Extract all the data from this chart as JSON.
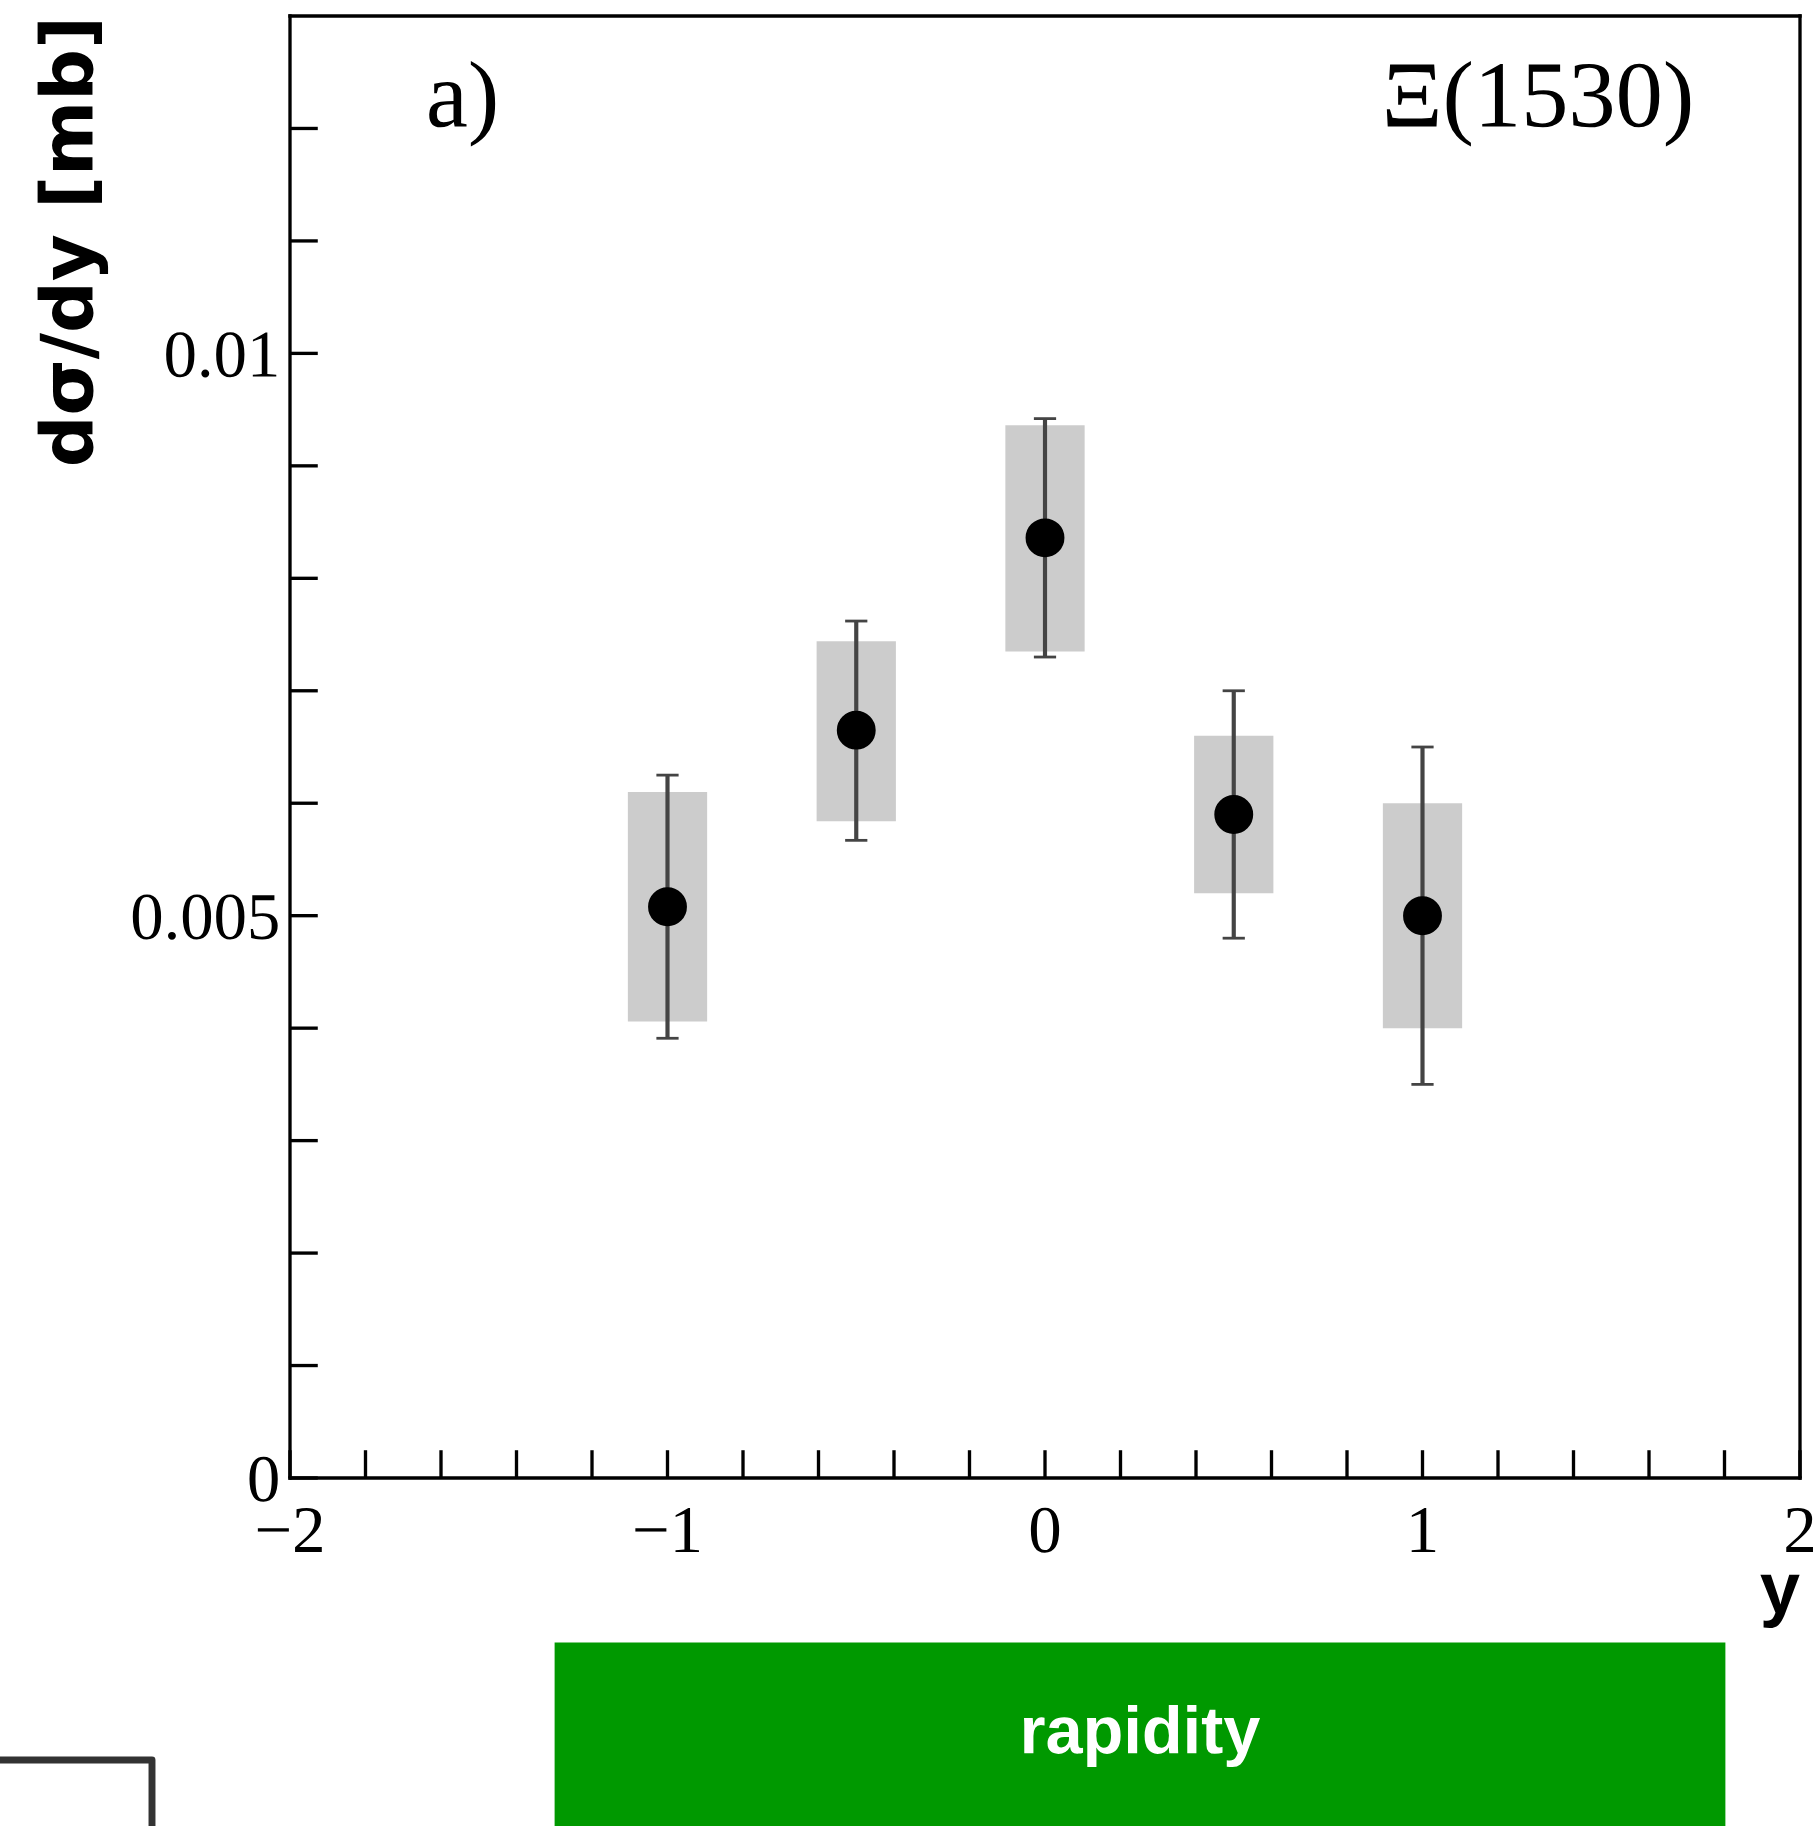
{
  "chart_data": {
    "type": "scatter",
    "xlabel": "y",
    "ylabel": "dσ/dy [mb]",
    "annotations": [
      "a)",
      "Ξ(1530)",
      "rapidity"
    ],
    "xlim": [
      -2,
      2
    ],
    "xticks": [
      {
        "value": -2,
        "label": "−2"
      },
      {
        "value": -1.8,
        "label": null
      },
      {
        "value": -1.6,
        "label": null
      },
      {
        "value": -1.4,
        "label": null
      },
      {
        "value": -1.2,
        "label": null
      },
      {
        "value": -1,
        "label": "−1"
      },
      {
        "value": -0.8,
        "label": null
      },
      {
        "value": -0.6,
        "label": null
      },
      {
        "value": -0.4,
        "label": null
      },
      {
        "value": -0.2,
        "label": null
      },
      0,
      {
        "value": 0.2,
        "label": null
      },
      {
        "value": 0.4,
        "label": null
      },
      {
        "value": 0.6,
        "label": null
      },
      {
        "value": 0.8,
        "label": null
      },
      1,
      {
        "value": 1.2,
        "label": null
      },
      {
        "value": 1.4,
        "label": null
      },
      {
        "value": 1.6,
        "label": null
      },
      {
        "value": 1.8,
        "label": null
      },
      2
    ],
    "ylim": [
      0,
      0.013
    ],
    "yticks": [
      0,
      {
        "value": 0.001,
        "label": null
      },
      {
        "value": 0.002,
        "label": null
      },
      {
        "value": 0.003,
        "label": null
      },
      {
        "value": 0.004,
        "label": null
      },
      0.005,
      {
        "value": 0.006,
        "label": null
      },
      {
        "value": 0.007,
        "label": null
      },
      {
        "value": 0.008,
        "label": null
      },
      {
        "value": 0.009,
        "label": null
      },
      0.01,
      {
        "value": 0.011,
        "label": null
      },
      {
        "value": 0.012,
        "label": null
      }
    ],
    "grid": false,
    "legend": false,
    "marker": "circle",
    "series": [
      {
        "type": "bar",
        "color": "#cccccc",
        "x": [
          -1,
          -0.5,
          0,
          0.5,
          1
        ],
        "base": [
          0.00406,
          0.00584,
          0.00735,
          0.0052,
          0.004
        ],
        "values": [
          0.00204,
          0.0016,
          0.00201,
          0.0014,
          0.002
        ]
      },
      {
        "color": "#000000",
        "x": [
          -1,
          -0.5,
          0,
          0.5,
          1
        ],
        "values": [
          0.00508,
          0.00665,
          0.00836,
          0.0059,
          0.005
        ],
        "errors": [
          [
            0.00391,
            0.00625
          ],
          [
            0.00567,
            0.00762
          ],
          [
            0.0073,
            0.00942
          ],
          [
            0.0048,
            0.007
          ],
          [
            0.0035,
            0.0065
          ]
        ]
      }
    ]
  }
}
